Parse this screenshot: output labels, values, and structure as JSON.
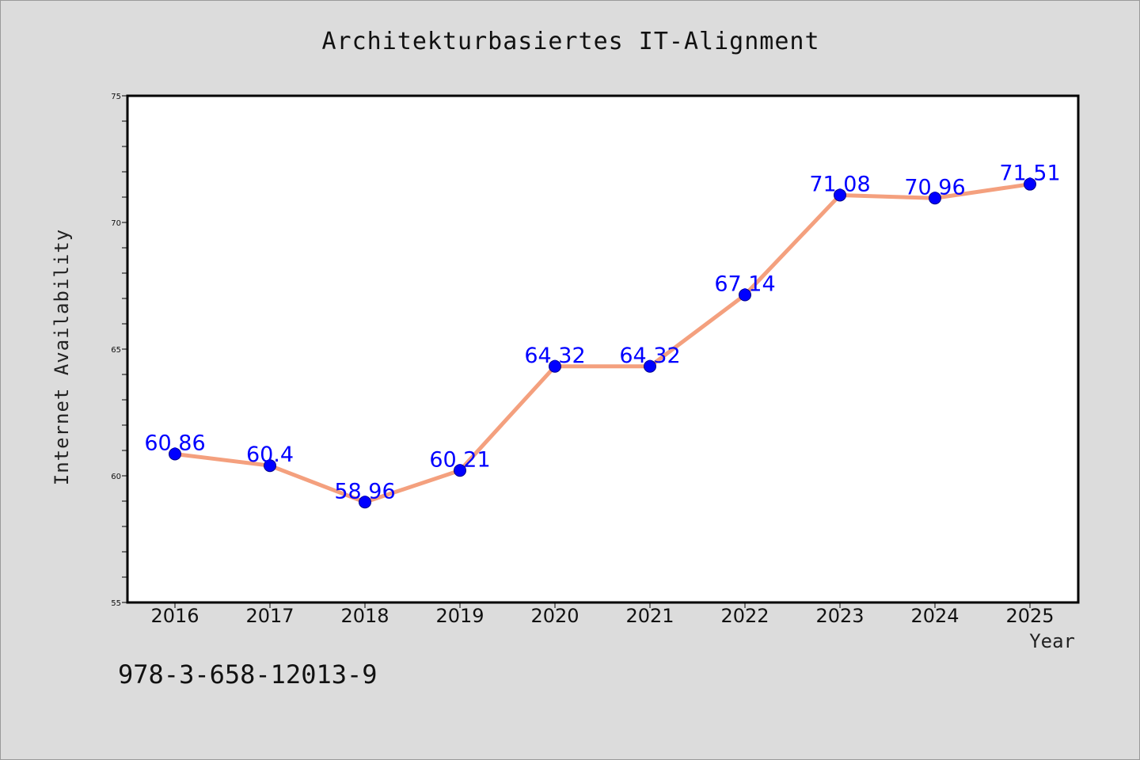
{
  "chart_data": {
    "type": "line",
    "title": "Architekturbasiertes IT-Alignment",
    "xlabel": "Year",
    "ylabel": "Internet Availability",
    "categories": [
      "2016",
      "2017",
      "2018",
      "2019",
      "2020",
      "2021",
      "2022",
      "2023",
      "2024",
      "2025"
    ],
    "series": [
      {
        "values": [
          60.86,
          60.4,
          58.96,
          60.21,
          64.32,
          64.32,
          67.14,
          71.08,
          70.96,
          71.51
        ],
        "labels": [
          "60.86",
          "60.4",
          "58.96",
          "60.21",
          "64.32",
          "64.32",
          "67.14",
          "71.08",
          "70.96",
          "71.51"
        ]
      }
    ],
    "ylim": [
      55,
      75
    ],
    "yticks": [
      "55",
      "60",
      "65",
      "70",
      "75"
    ],
    "grid": false,
    "line_color": "#f4a07e",
    "marker_color": "#0000ff",
    "label_color": "#0000ff"
  },
  "footer": {
    "code": "978-3-658-12013-9"
  }
}
